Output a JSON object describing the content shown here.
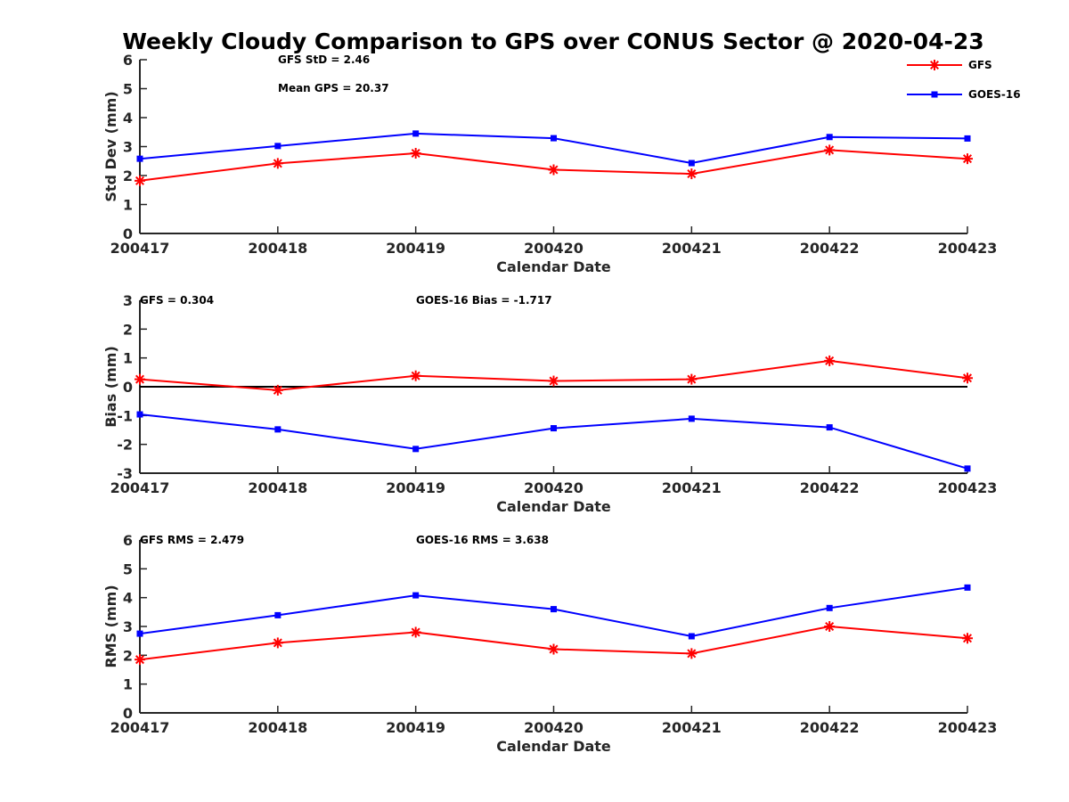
{
  "title": "Weekly Cloudy Comparison to GPS over CONUS Sector @ 2020-04-23",
  "legend": {
    "placement": "top-right",
    "items": [
      "GFS",
      "GOES-16"
    ]
  },
  "colors": {
    "gfs": "#ff0000",
    "goes16": "#0000ff",
    "axis": "#262626",
    "zero_line": "#000000"
  },
  "chart_data": [
    {
      "type": "line",
      "categories": [
        "200417",
        "200418",
        "200419",
        "200420",
        "200421",
        "200422",
        "200423"
      ],
      "xlabel": "Calendar Date",
      "ylabel": "Std Dev (mm)",
      "ylim": [
        0,
        6
      ],
      "yticks": [
        "0",
        "1",
        "2",
        "3",
        "4",
        "5",
        "6"
      ],
      "annotations": [
        "GFS StD = 2.46",
        "Mean GPS = 20.37"
      ],
      "zero_line": false,
      "series": [
        {
          "name": "GFS",
          "marker": "asterisk",
          "values": [
            1.82,
            2.42,
            2.77,
            2.2,
            2.06,
            2.88,
            2.58
          ]
        },
        {
          "name": "GOES-16",
          "marker": "square",
          "values": [
            2.58,
            3.02,
            3.45,
            3.29,
            2.43,
            3.33,
            3.28
          ]
        }
      ]
    },
    {
      "type": "line",
      "categories": [
        "200417",
        "200418",
        "200419",
        "200420",
        "200421",
        "200422",
        "200423"
      ],
      "xlabel": "Calendar Date",
      "ylabel": "Bias (mm)",
      "ylim": [
        -3,
        3
      ],
      "yticks": [
        "-3",
        "-2",
        "-1",
        "0",
        "1",
        "2",
        "3"
      ],
      "annotations": [
        "GFS = 0.304",
        "GOES-16 Bias  = -1.717"
      ],
      "zero_line": true,
      "series": [
        {
          "name": "GFS",
          "marker": "asterisk",
          "values": [
            0.26,
            -0.12,
            0.38,
            0.2,
            0.26,
            0.9,
            0.3
          ]
        },
        {
          "name": "GOES-16",
          "marker": "square",
          "values": [
            -0.96,
            -1.48,
            -2.16,
            -1.44,
            -1.11,
            -1.41,
            -2.84
          ]
        }
      ]
    },
    {
      "type": "line",
      "categories": [
        "200417",
        "200418",
        "200419",
        "200420",
        "200421",
        "200422",
        "200423"
      ],
      "xlabel": "Calendar Date",
      "ylabel": "RMS (mm)",
      "ylim": [
        0,
        6
      ],
      "yticks": [
        "0",
        "1",
        "2",
        "3",
        "4",
        "5",
        "6"
      ],
      "annotations": [
        "GFS RMS = 2.479",
        "GOES-16 RMS = 3.638"
      ],
      "zero_line": false,
      "series": [
        {
          "name": "GFS",
          "marker": "asterisk",
          "values": [
            1.85,
            2.43,
            2.8,
            2.21,
            2.06,
            3.0,
            2.59
          ]
        },
        {
          "name": "GOES-16",
          "marker": "square",
          "values": [
            2.75,
            3.39,
            4.08,
            3.6,
            2.66,
            3.64,
            4.35
          ]
        }
      ]
    }
  ]
}
